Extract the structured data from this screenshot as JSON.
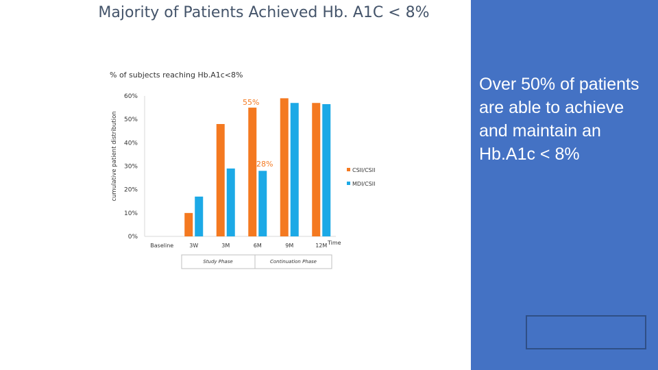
{
  "slide": {
    "title": "Majority of Patients Achieved Hb. A1C < 8%",
    "chart_heading": "% of subjects reaching Hb.A1c<8%"
  },
  "panel": {
    "text": "Over 50% of patients are able to achieve and maintain an Hb.A1c < 8%",
    "background": "#4472c4"
  },
  "chart_data": {
    "type": "bar",
    "categories": [
      "Baseline",
      "3W",
      "3M",
      "6M",
      "9M",
      "12M"
    ],
    "series": [
      {
        "name": "CSII/CSII",
        "color": "#f47920",
        "values": [
          0,
          10,
          48,
          55,
          59,
          57
        ]
      },
      {
        "name": "MDI/CSII",
        "color": "#1ca9e6",
        "values": [
          0,
          17,
          29,
          28,
          57,
          56.5
        ]
      }
    ],
    "ylabel": "cumulative patient distribution",
    "xlabel": "Time",
    "ylim": [
      0,
      60
    ],
    "yticks": [
      "0%",
      "10%",
      "20%",
      "30%",
      "40%",
      "50%",
      "60%"
    ],
    "annotations": [
      {
        "text": "55%",
        "color": "#f47920"
      },
      {
        "text": "28%",
        "color": "#f47920"
      }
    ],
    "phases": [
      "Study Phase",
      "Continuation Phase"
    ],
    "legend_position": "right",
    "grid": false
  }
}
